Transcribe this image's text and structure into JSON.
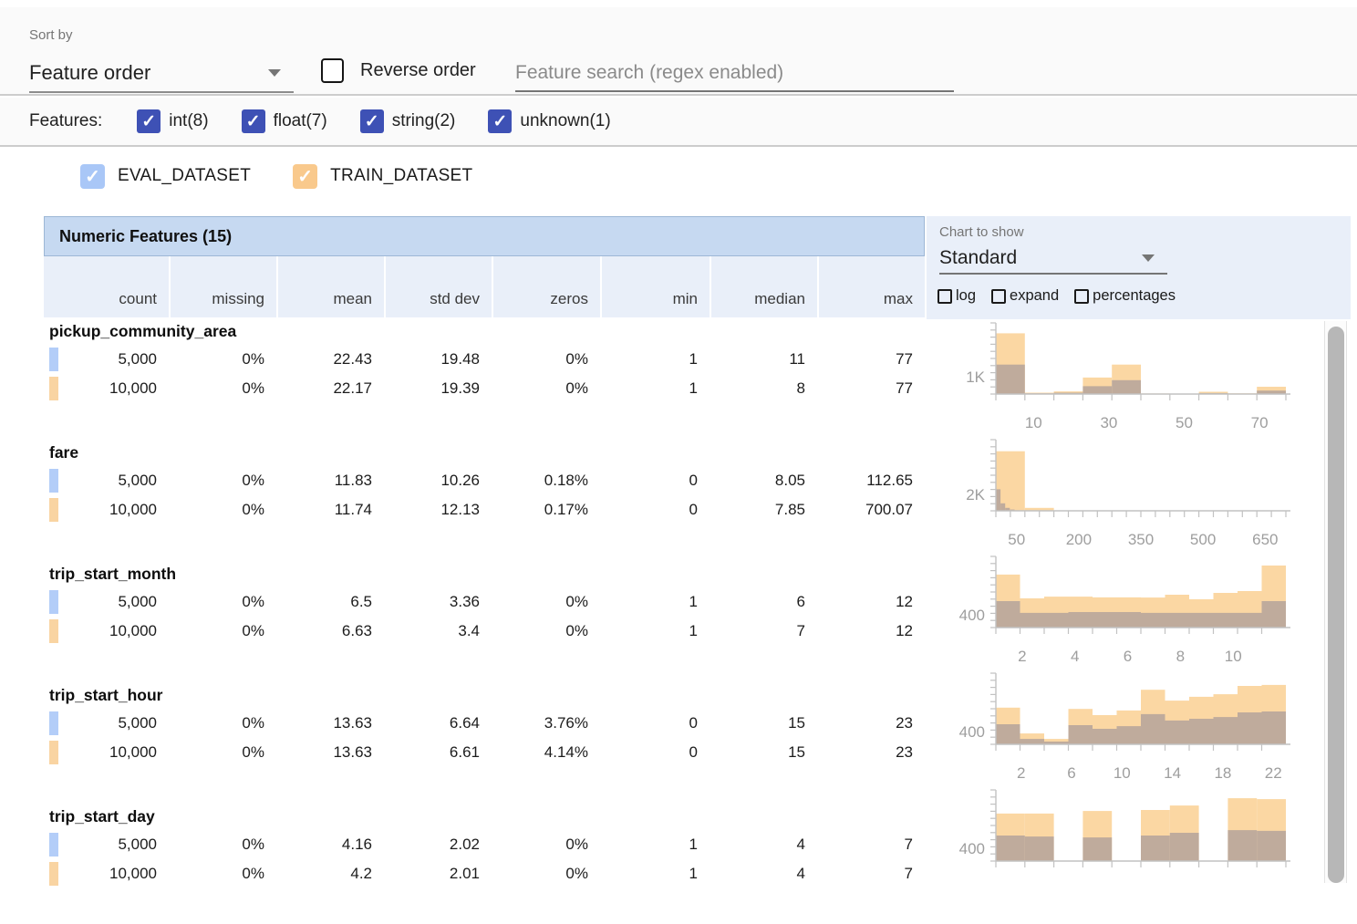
{
  "toolbar": {
    "sort_by_label": "Sort by",
    "sort_by_value": "Feature order",
    "reverse_order_label": "Reverse order",
    "search_placeholder": "Feature search (regex enabled)"
  },
  "feature_filters": {
    "label": "Features:",
    "checkbox_color": "#3e51b5",
    "items": [
      {
        "label": "int(8)",
        "checked": true
      },
      {
        "label": "float(7)",
        "checked": true
      },
      {
        "label": "string(2)",
        "checked": true
      },
      {
        "label": "unknown(1)",
        "checked": true
      }
    ]
  },
  "datasets": [
    {
      "name": "EVAL_DATASET",
      "checkbox_color": "#a9c7f7",
      "swatch_color": "#b3cdf8",
      "checked": true
    },
    {
      "name": "TRAIN_DATASET",
      "checkbox_color": "#f9c98c",
      "swatch_color": "#f9d4a2",
      "checked": true
    }
  ],
  "table": {
    "title": "Numeric Features (15)",
    "columns": [
      "count",
      "missing",
      "mean",
      "std dev",
      "zeros",
      "min",
      "median",
      "max"
    ],
    "features": [
      {
        "name": "pickup_community_area",
        "rows": [
          {
            "dataset": "EVAL_DATASET",
            "values": [
              "5,000",
              "0%",
              "22.43",
              "19.48",
              "0%",
              "1",
              "11",
              "77"
            ]
          },
          {
            "dataset": "TRAIN_DATASET",
            "values": [
              "10,000",
              "0%",
              "22.17",
              "19.39",
              "0%",
              "1",
              "8",
              "77"
            ]
          }
        ]
      },
      {
        "name": "fare",
        "rows": [
          {
            "dataset": "EVAL_DATASET",
            "values": [
              "5,000",
              "0%",
              "11.83",
              "10.26",
              "0.18%",
              "0",
              "8.05",
              "112.65"
            ]
          },
          {
            "dataset": "TRAIN_DATASET",
            "values": [
              "10,000",
              "0%",
              "11.74",
              "12.13",
              "0.17%",
              "0",
              "7.85",
              "700.07"
            ]
          }
        ]
      },
      {
        "name": "trip_start_month",
        "rows": [
          {
            "dataset": "EVAL_DATASET",
            "values": [
              "5,000",
              "0%",
              "6.5",
              "3.36",
              "0%",
              "1",
              "6",
              "12"
            ]
          },
          {
            "dataset": "TRAIN_DATASET",
            "values": [
              "10,000",
              "0%",
              "6.63",
              "3.4",
              "0%",
              "1",
              "7",
              "12"
            ]
          }
        ]
      },
      {
        "name": "trip_start_hour",
        "rows": [
          {
            "dataset": "EVAL_DATASET",
            "values": [
              "5,000",
              "0%",
              "13.63",
              "6.64",
              "3.76%",
              "0",
              "15",
              "23"
            ]
          },
          {
            "dataset": "TRAIN_DATASET",
            "values": [
              "10,000",
              "0%",
              "13.63",
              "6.61",
              "4.14%",
              "0",
              "15",
              "23"
            ]
          }
        ]
      },
      {
        "name": "trip_start_day",
        "rows": [
          {
            "dataset": "EVAL_DATASET",
            "values": [
              "5,000",
              "0%",
              "4.16",
              "2.02",
              "0%",
              "1",
              "4",
              "7"
            ]
          },
          {
            "dataset": "TRAIN_DATASET",
            "values": [
              "10,000",
              "0%",
              "4.2",
              "2.01",
              "0%",
              "1",
              "4",
              "7"
            ]
          }
        ]
      }
    ]
  },
  "chart_panel": {
    "label": "Chart to show",
    "selected_value": "Standard",
    "options": [
      "log",
      "expand",
      "percentages"
    ]
  },
  "chart_colors": {
    "train_bar": "#fbd7a3",
    "eval_overlap_bar": "#bfab9c",
    "axis": "#c2c2c2",
    "tick_label": "#9e9e9e"
  },
  "chart_data": [
    {
      "type": "histogram",
      "feature": "pickup_community_area",
      "x_range": [
        0,
        77
      ],
      "x_ticks": [
        10,
        30,
        50,
        70
      ],
      "x_tick_step": 7.7,
      "y_max": 4100,
      "y_tick": {
        "value": 1000,
        "label": "1K"
      },
      "series": [
        {
          "name": "TRAIN_DATASET",
          "bin_start": 0,
          "bin_width": 7.7,
          "values": [
            3500,
            80,
            150,
            950,
            1700,
            30,
            15,
            130,
            40,
            420
          ]
        },
        {
          "name": "EVAL_DATASET",
          "bin_start": 0,
          "bin_width": 7.7,
          "values": [
            1700,
            40,
            80,
            450,
            800,
            15,
            8,
            60,
            20,
            200
          ]
        }
      ]
    },
    {
      "type": "histogram",
      "feature": "fare",
      "x_range": [
        0,
        700
      ],
      "x_ticks": [
        50,
        200,
        350,
        500,
        650
      ],
      "x_tick_step": 35,
      "y_max": 8600,
      "y_tick": {
        "value": 2000,
        "label": "2K"
      },
      "series": [
        {
          "name": "TRAIN_DATASET",
          "bin_start": 0,
          "bin_width": 70,
          "values": [
            7200,
            350,
            60,
            20,
            10,
            5,
            3,
            2,
            1,
            3
          ]
        },
        {
          "name": "EVAL_DATASET",
          "bin_start": 0,
          "bin_width": 11.265,
          "values": [
            2600,
            900,
            350,
            150,
            70,
            35,
            15,
            8,
            4,
            2
          ]
        }
      ]
    },
    {
      "type": "histogram",
      "feature": "trip_start_month",
      "x_range": [
        1,
        12
      ],
      "x_ticks": [
        2,
        4,
        6,
        8,
        10
      ],
      "x_tick_step": 0.9167,
      "y_max": 2230,
      "y_tick": {
        "value": 400,
        "label": "400"
      },
      "series": [
        {
          "name": "TRAIN_DATASET",
          "bin_start": 1,
          "bin_width": 0.9167,
          "values": [
            1660,
            915,
            970,
            970,
            945,
            945,
            940,
            1030,
            885,
            1085,
            1145,
            1945
          ]
        },
        {
          "name": "EVAL_DATASET",
          "bin_start": 1,
          "bin_width": 0.9167,
          "values": [
            830,
            460,
            460,
            485,
            485,
            485,
            460,
            460,
            460,
            460,
            460,
            830
          ]
        }
      ]
    },
    {
      "type": "histogram",
      "feature": "trip_start_hour",
      "x_range": [
        0,
        23
      ],
      "x_ticks": [
        2,
        6,
        10,
        14,
        18,
        22
      ],
      "x_tick_step": 1.9167,
      "y_max": 2230,
      "y_tick": {
        "value": 400,
        "label": "400"
      },
      "series": [
        {
          "name": "TRAIN_DATASET",
          "bin_start": 0,
          "bin_width": 1.9167,
          "values": [
            1150,
            340,
            170,
            1110,
            915,
            1060,
            1710,
            1370,
            1490,
            1570,
            1830,
            1860
          ]
        },
        {
          "name": "EVAL_DATASET",
          "bin_start": 0,
          "bin_width": 1.9167,
          "values": [
            630,
            170,
            85,
            600,
            485,
            570,
            945,
            745,
            800,
            855,
            1000,
            1030
          ]
        }
      ]
    },
    {
      "type": "histogram",
      "feature": "trip_start_day",
      "x_range": [
        1,
        7
      ],
      "x_ticks": [],
      "x_tick_step": 0.6,
      "y_max": 2230,
      "y_tick": {
        "value": 400,
        "label": "400"
      },
      "series": [
        {
          "name": "TRAIN_DATASET",
          "bin_start": 1,
          "bin_width": 0.6,
          "values": [
            1490,
            1490,
            0,
            1570,
            0,
            1600,
            1740,
            0,
            1970,
            1940
          ]
        },
        {
          "name": "EVAL_DATASET",
          "bin_start": 1,
          "bin_width": 0.6,
          "values": [
            800,
            770,
            0,
            740,
            0,
            800,
            885,
            0,
            970,
            945
          ]
        }
      ]
    }
  ]
}
